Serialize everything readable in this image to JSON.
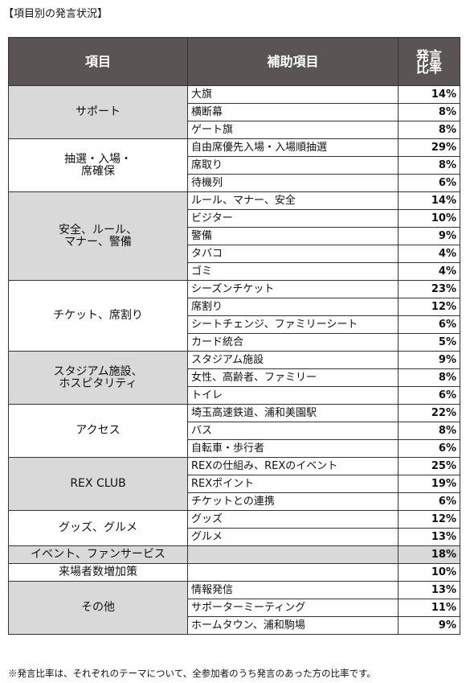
{
  "caption": "【項目別の発言状況】",
  "table": {
    "header": [
      "項目",
      "補助項目",
      "発言\n比率"
    ],
    "groups": [
      {
        "item": "サポート",
        "shade": true,
        "subitems": [
          {
            "name": "大旗",
            "rate": "14%"
          },
          {
            "name": "横断幕",
            "rate": "8%"
          },
          {
            "name": "ゲート旗",
            "rate": "8%"
          }
        ]
      },
      {
        "item": "抽選・入場・\n席確保",
        "shade": false,
        "subitems": [
          {
            "name": "自由席優先入場・入場順抽選",
            "rate": "29%"
          },
          {
            "name": "席取り",
            "rate": "8%"
          },
          {
            "name": "待機列",
            "rate": "6%"
          }
        ]
      },
      {
        "item": "安全、ルール、\nマナー、警備",
        "shade": true,
        "subitems": [
          {
            "name": "ルール、マナー、安全",
            "rate": "14%"
          },
          {
            "name": "ビジター",
            "rate": "10%"
          },
          {
            "name": "警備",
            "rate": "9%"
          },
          {
            "name": "タバコ",
            "rate": "4%"
          },
          {
            "name": "ゴミ",
            "rate": "4%"
          }
        ]
      },
      {
        "item": "チケット、席割り",
        "shade": false,
        "subitems": [
          {
            "name": "シーズンチケット",
            "rate": "23%"
          },
          {
            "name": "席割り",
            "rate": "12%"
          },
          {
            "name": "シートチェンジ、ファミリーシート",
            "rate": "6%"
          },
          {
            "name": "カード統合",
            "rate": "5%"
          }
        ]
      },
      {
        "item": "スタジアム施設、\nホスピタリティ",
        "shade": true,
        "subitems": [
          {
            "name": "スタジアム施設",
            "rate": "9%"
          },
          {
            "name": "女性、高齢者、ファミリー",
            "rate": "8%"
          },
          {
            "name": "トイレ",
            "rate": "6%"
          }
        ]
      },
      {
        "item": "アクセス",
        "shade": false,
        "subitems": [
          {
            "name": "埼玉高速鉄道、浦和美園駅",
            "rate": "22%"
          },
          {
            "name": "バス",
            "rate": "8%"
          },
          {
            "name": "自転車・歩行者",
            "rate": "6%"
          }
        ]
      },
      {
        "item": "REX CLUB",
        "shade": true,
        "subitems": [
          {
            "name": "REXの仕組み、REXのイベント",
            "rate": "25%"
          },
          {
            "name": "REXポイント",
            "rate": "19%"
          },
          {
            "name": "チケットとの連携",
            "rate": "6%"
          }
        ]
      },
      {
        "item": "グッズ、グルメ",
        "shade": false,
        "subitems": [
          {
            "name": "グッズ",
            "rate": "12%"
          },
          {
            "name": "グルメ",
            "rate": "13%"
          }
        ]
      },
      {
        "item": "イベント、ファンサービス",
        "shade": true,
        "subitems": [
          {
            "rate": "18%"
          }
        ]
      },
      {
        "item": "来場者数増加策",
        "shade": false,
        "subitems": [
          {
            "rate": "10%"
          }
        ]
      },
      {
        "item": "その他",
        "shade": true,
        "subitems": [
          {
            "name": "情報発信",
            "rate": "13%"
          },
          {
            "name": "サポーターミーティング",
            "rate": "11%"
          },
          {
            "name": "ホームタウン、浦和駒場",
            "rate": "9%"
          }
        ]
      }
    ]
  },
  "footnote": "※発言比率は、それぞれのテーマについて、全参加者のうち発言のあった方の比率です。"
}
